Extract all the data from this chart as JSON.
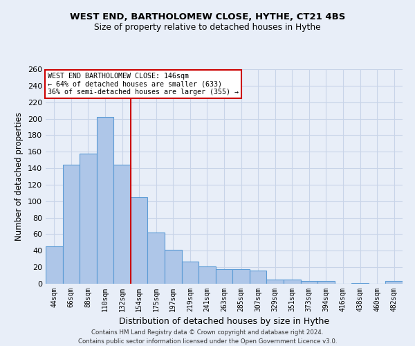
{
  "title1": "WEST END, BARTHOLOMEW CLOSE, HYTHE, CT21 4BS",
  "title2": "Size of property relative to detached houses in Hythe",
  "xlabel": "Distribution of detached houses by size in Hythe",
  "ylabel": "Number of detached properties",
  "footer1": "Contains HM Land Registry data © Crown copyright and database right 2024.",
  "footer2": "Contains public sector information licensed under the Open Government Licence v3.0.",
  "categories": [
    "44sqm",
    "66sqm",
    "88sqm",
    "110sqm",
    "132sqm",
    "154sqm",
    "175sqm",
    "197sqm",
    "219sqm",
    "241sqm",
    "263sqm",
    "285sqm",
    "307sqm",
    "329sqm",
    "351sqm",
    "373sqm",
    "394sqm",
    "416sqm",
    "438sqm",
    "460sqm",
    "482sqm"
  ],
  "values": [
    45,
    144,
    158,
    202,
    144,
    105,
    62,
    41,
    27,
    21,
    18,
    18,
    16,
    5,
    5,
    3,
    3,
    0,
    1,
    0,
    3
  ],
  "bar_color": "#aec6e8",
  "bar_edge_color": "#5b9bd5",
  "grid_color": "#c8d4e8",
  "background_color": "#e8eef8",
  "annotation_box_color": "#ffffff",
  "annotation_border_color": "#cc0000",
  "property_line_color": "#cc0000",
  "property_bin_index": 4,
  "annotation_text_line1": "WEST END BARTHOLOMEW CLOSE: 146sqm",
  "annotation_text_line2": "← 64% of detached houses are smaller (633)",
  "annotation_text_line3": "36% of semi-detached houses are larger (355) →",
  "ylim": [
    0,
    260
  ],
  "yticks": [
    0,
    20,
    40,
    60,
    80,
    100,
    120,
    140,
    160,
    180,
    200,
    220,
    240,
    260
  ]
}
